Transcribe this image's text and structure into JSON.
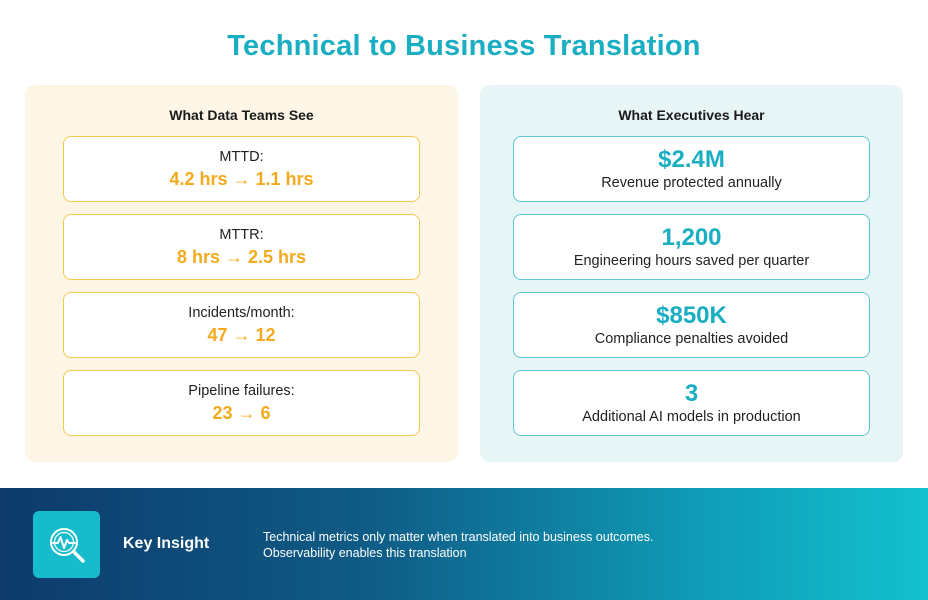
{
  "title": "Technical to Business Translation",
  "left_panel": {
    "heading": "What Data Teams See",
    "cards": [
      {
        "label": "MTTD:",
        "value": "4.2 hrs → 1.1 hrs"
      },
      {
        "label": "MTTR:",
        "value": "8 hrs → 2.5 hrs"
      },
      {
        "label": "Incidents/month:",
        "value": "47 → 12"
      },
      {
        "label": "Pipeline failures:",
        "value": "23 → 6"
      }
    ]
  },
  "right_panel": {
    "heading": "What Executives Hear",
    "cards": [
      {
        "value": "$2.4M",
        "label": "Revenue protected annually"
      },
      {
        "value": "1,200",
        "label": "Engineering hours saved per quarter"
      },
      {
        "value": "$850K",
        "label": "Compliance penalties avoided"
      },
      {
        "value": "3",
        "label": "Additional AI models in production"
      }
    ]
  },
  "footer": {
    "icon": "magnifier-pulse-icon",
    "label": "Key Insight",
    "text_line1": "Technical metrics only matter when translated into business outcomes.",
    "text_line2": "Observability enables this translation"
  },
  "colors": {
    "title": "#1aaec2",
    "left_panel_bg": "#fdf6e6",
    "left_card_border": "#f5c94f",
    "left_value": "#f3aa1c",
    "right_panel_bg": "#e8f5f6",
    "right_card_border": "#5cc7d4",
    "right_value": "#1aaec2",
    "footer_gradient_start": "#0d3a6b",
    "footer_gradient_end": "#13c1cf",
    "icon_box": "#16bccb"
  }
}
